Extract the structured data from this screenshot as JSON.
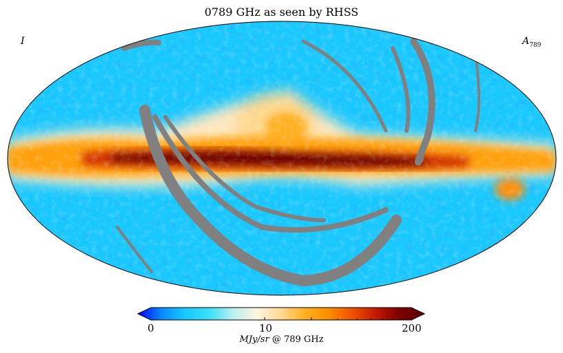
{
  "title": "0789 GHz as seen by RHSS",
  "stokes_label": "I",
  "map_label": {
    "main": "A",
    "sub": "789"
  },
  "colorbar": {
    "min_label": "0",
    "mid_label": "10",
    "max_label": "200",
    "unit_italic": "MJy/sr",
    "unit_rest": "@ 789 GHz",
    "scale": "log",
    "colors": [
      "#0000ff",
      "#0a8cff",
      "#19c8ff",
      "#3ce0f5",
      "#bdeff0",
      "#fff5dc",
      "#ffd890",
      "#ffb020",
      "#ff8c00",
      "#f05000",
      "#c01800",
      "#7a0000",
      "#5a0000"
    ]
  },
  "masked_color": "#808080",
  "background_colors": {
    "sky_cold": "#19c8ff",
    "sky_blue": "#1e90ff",
    "plane_hot": "#6b0000"
  }
}
